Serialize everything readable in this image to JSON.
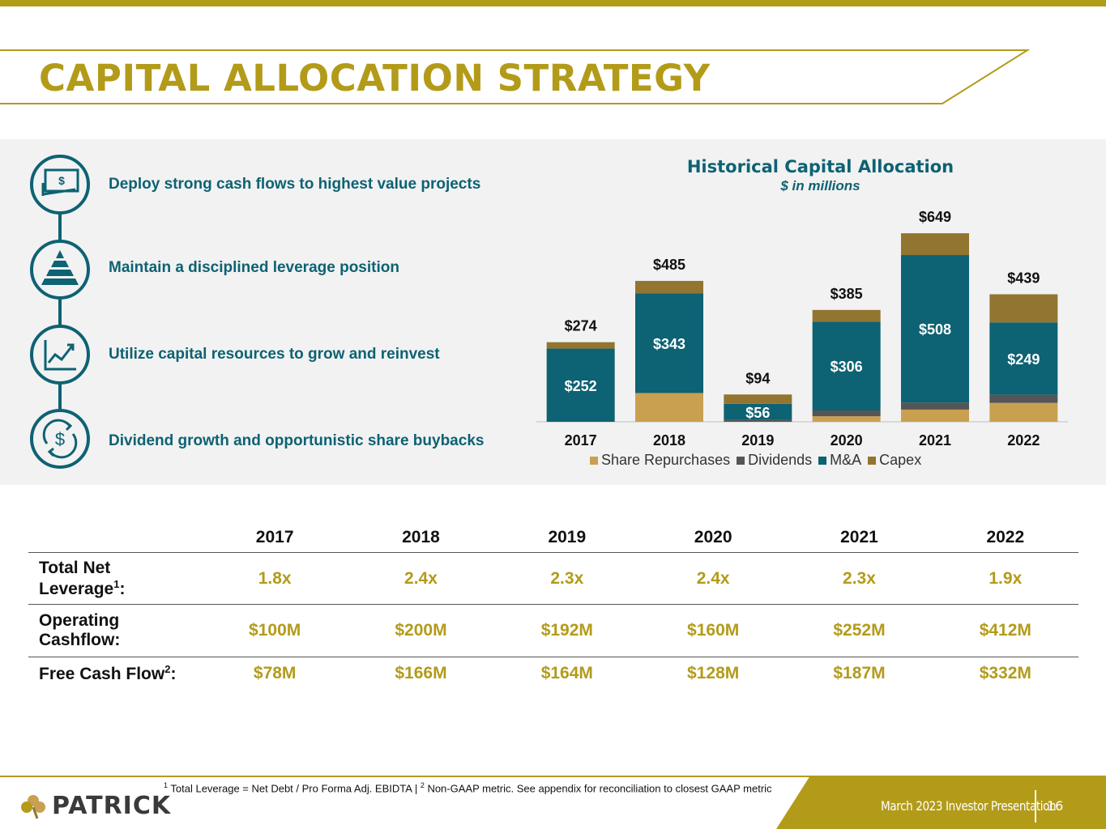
{
  "header": {
    "title": "CAPITAL ALLOCATION STRATEGY"
  },
  "strategies": [
    {
      "icon": "cash-icon",
      "text": "Deploy strong cash flows to highest value projects"
    },
    {
      "icon": "pyramid-icon",
      "text": "Maintain a disciplined leverage position"
    },
    {
      "icon": "growth-chart-icon",
      "text": "Utilize capital resources to grow and reinvest"
    },
    {
      "icon": "dollar-cycle-icon",
      "text": "Dividend growth and opportunistic share buybacks"
    }
  ],
  "colors": {
    "gold": "#b39b1a",
    "teal": "#0d6273",
    "share_repurchases": "#c9a050",
    "dividends": "#555555",
    "ma": "#0d6273",
    "capex": "#927530"
  },
  "chart_data": {
    "type": "bar",
    "stacked": true,
    "title": "Historical Capital Allocation",
    "subtitle": "$ in millions",
    "categories": [
      "2017",
      "2018",
      "2019",
      "2020",
      "2021",
      "2022"
    ],
    "series": [
      {
        "name": "Share Repurchases",
        "values": [
          0,
          99,
          0,
          19,
          42,
          65
        ]
      },
      {
        "name": "Dividends",
        "values": [
          0,
          0,
          6,
          20,
          24,
          28
        ]
      },
      {
        "name": "M&A",
        "values": [
          252,
          343,
          56,
          306,
          508,
          249
        ]
      },
      {
        "name": "Capex",
        "values": [
          22,
          43,
          32,
          40,
          75,
          97
        ]
      }
    ],
    "totals": [
      274,
      485,
      94,
      385,
      649,
      439
    ],
    "total_labels": [
      "$274",
      "$485",
      "$94",
      "$385",
      "$649",
      "$439"
    ],
    "ma_labels": [
      "$252",
      "$343",
      "$56",
      "$306",
      "$508",
      "$249"
    ],
    "legend_position": "bottom",
    "ylim": [
      0,
      680
    ],
    "grid": false
  },
  "table": {
    "headers": [
      "2017",
      "2018",
      "2019",
      "2020",
      "2021",
      "2022"
    ],
    "rows": [
      {
        "label": "Total Net Leverage",
        "sup": "1",
        "suffix": ":",
        "values": [
          "1.8x",
          "2.4x",
          "2.3x",
          "2.4x",
          "2.3x",
          "1.9x"
        ]
      },
      {
        "label": "Operating Cashflow:",
        "sup": "",
        "suffix": "",
        "values": [
          "$100M",
          "$200M",
          "$192M",
          "$160M",
          "$252M",
          "$412M"
        ]
      },
      {
        "label": "Free Cash Flow",
        "sup": "2",
        "suffix": ":",
        "values": [
          "$78M",
          "$166M",
          "$164M",
          "$128M",
          "$187M",
          "$332M"
        ]
      }
    ]
  },
  "footer": {
    "footnote_sup1": "1",
    "footnote_part1": " Total Leverage = Net Debt / Pro Forma Adj. EBIDTA | ",
    "footnote_sup2": "2",
    "footnote_part2": " Non-GAAP metric. See appendix for reconciliation to closest GAAP metric",
    "presentation": "March 2023 Investor Presentation",
    "page": "16",
    "brand": "PATRICK"
  }
}
